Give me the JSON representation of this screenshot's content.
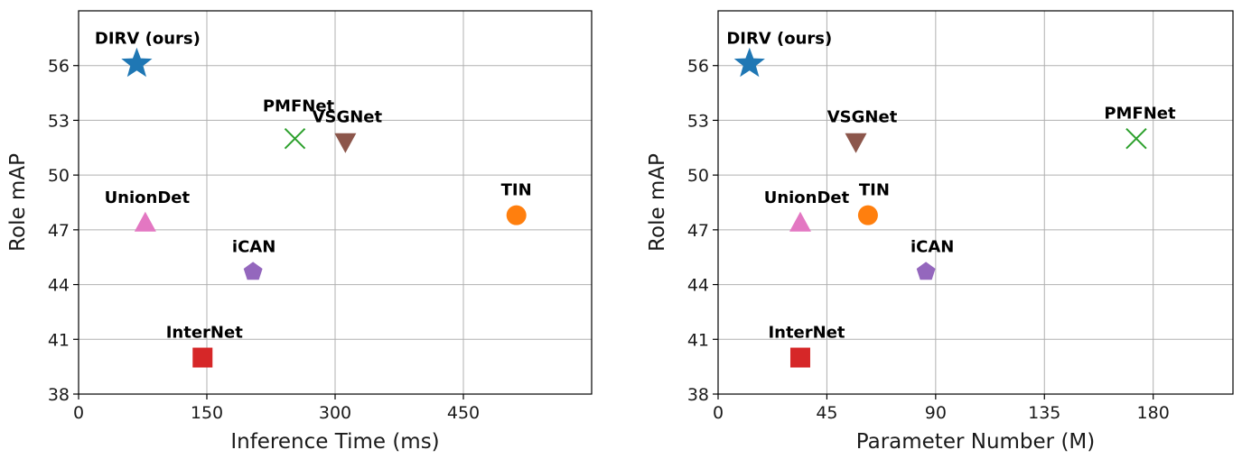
{
  "chart_data": [
    {
      "type": "scatter",
      "xlabel": "Inference Time (ms)",
      "ylabel": "Role mAP",
      "xlim": [
        0,
        600
      ],
      "ylim": [
        38,
        59
      ],
      "xticks": [
        0,
        150,
        300,
        450
      ],
      "yticks": [
        38,
        41,
        44,
        47,
        50,
        53,
        56
      ],
      "grid": true,
      "points": [
        {
          "label": "DIRV (ours)",
          "x": 68,
          "y": 56.1,
          "marker": "star",
          "color": "#1f77b4"
        },
        {
          "label": "PMFNet",
          "x": 253,
          "y": 52.0,
          "marker": "x",
          "color": "#2ca02c"
        },
        {
          "label": "VSGNet",
          "x": 312,
          "y": 51.8,
          "marker": "triangle-down",
          "color": "#8c564b"
        },
        {
          "label": "TIN",
          "x": 512,
          "y": 47.8,
          "marker": "circle",
          "color": "#ff7f0e"
        },
        {
          "label": "UnionDet",
          "x": 78,
          "y": 47.4,
          "marker": "triangle-up",
          "color": "#e377c2"
        },
        {
          "label": "iCAN",
          "x": 204,
          "y": 44.7,
          "marker": "pentagon",
          "color": "#9467bd"
        },
        {
          "label": "InterNet",
          "x": 145,
          "y": 40.0,
          "marker": "square",
          "color": "#d62728"
        }
      ]
    },
    {
      "type": "scatter",
      "xlabel": "Parameter Number (M)",
      "ylabel": "Role mAP",
      "xlim": [
        0,
        213
      ],
      "ylim": [
        38,
        59
      ],
      "xticks": [
        0,
        45,
        90,
        135,
        180
      ],
      "yticks": [
        38,
        41,
        44,
        47,
        50,
        53,
        56
      ],
      "grid": true,
      "points": [
        {
          "label": "DIRV (ours)",
          "x": 13,
          "y": 56.1,
          "marker": "star",
          "color": "#1f77b4"
        },
        {
          "label": "VSGNet",
          "x": 57,
          "y": 51.8,
          "marker": "triangle-down",
          "color": "#8c564b"
        },
        {
          "label": "PMFNet",
          "x": 173,
          "y": 52.0,
          "marker": "x",
          "color": "#2ca02c"
        },
        {
          "label": "UnionDet",
          "x": 34,
          "y": 47.4,
          "marker": "triangle-up",
          "color": "#e377c2"
        },
        {
          "label": "TIN",
          "x": 62,
          "y": 47.8,
          "marker": "circle",
          "color": "#ff7f0e"
        },
        {
          "label": "iCAN",
          "x": 86,
          "y": 44.7,
          "marker": "pentagon",
          "color": "#9467bd"
        },
        {
          "label": "InterNet",
          "x": 34,
          "y": 40.0,
          "marker": "square",
          "color": "#d62728"
        }
      ]
    }
  ]
}
